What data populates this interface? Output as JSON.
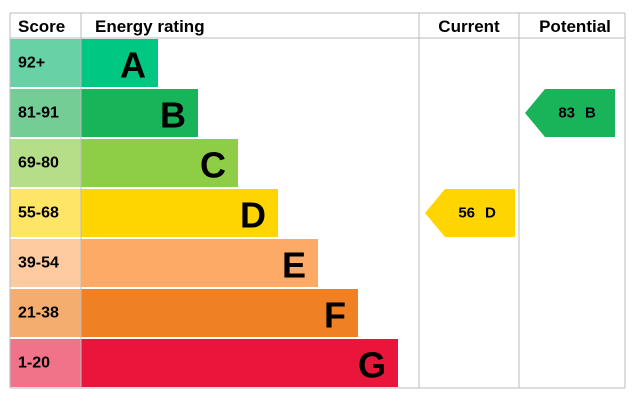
{
  "headers": [
    "Score",
    "Energy rating",
    "Current",
    "Potential"
  ],
  "bands": [
    {
      "score": "92+",
      "letter": "A",
      "color": "#00c781",
      "score_color": "#66d2a5"
    },
    {
      "score": "81-91",
      "letter": "B",
      "color": "#19b459",
      "score_color": "#74cd95"
    },
    {
      "score": "69-80",
      "letter": "C",
      "color": "#8dce46",
      "score_color": "#b5de88"
    },
    {
      "score": "55-68",
      "letter": "D",
      "color": "#ffd500",
      "score_color": "#ffe566"
    },
    {
      "score": "39-54",
      "letter": "E",
      "color": "#fcaa65",
      "score_color": "#fdcb9f"
    },
    {
      "score": "21-38",
      "letter": "F",
      "color": "#ef8023",
      "score_color": "#f4ac6f"
    },
    {
      "score": "1-20",
      "letter": "G",
      "color": "#e9153b",
      "score_color": "#f0738a"
    }
  ],
  "current": {
    "value": 56,
    "letter": "D"
  },
  "potential": {
    "value": 83,
    "letter": "B"
  }
}
